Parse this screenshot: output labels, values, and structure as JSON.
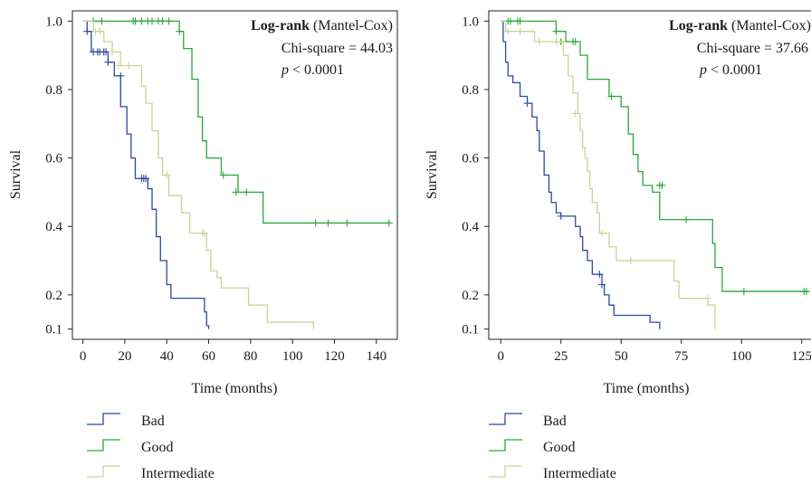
{
  "colors": {
    "bad": "#2b4aa0",
    "good": "#27a83c",
    "intermediate": "#cdd296",
    "axis": "#222222"
  },
  "chart_data": [
    {
      "type": "line",
      "step": true,
      "xlabel": "Time (months)",
      "ylabel": "Survival",
      "xlim": [
        -5,
        150
      ],
      "ylim": [
        0.07,
        1.03
      ],
      "xticks": [
        0,
        20,
        40,
        60,
        80,
        100,
        120,
        140
      ],
      "xtick_labels": [
        "0",
        "20",
        "40",
        "60",
        "80",
        "100",
        "120",
        "140"
      ],
      "yticks": [
        1.0,
        0.8,
        0.6,
        0.4,
        0.2,
        0.1
      ],
      "ytick_labels": [
        "1.0",
        "0.8",
        "0.6",
        "0.4",
        "0.2",
        "0.1"
      ],
      "annotation": {
        "line1_bold": "Log-rank",
        "line1_rest": " (Mantel-Cox)",
        "line2": "Chi-square = 44.03",
        "line3_italic": "p",
        "line3_rest": " < 0.0001"
      },
      "series": [
        {
          "name": "Bad",
          "color": "#2b4aa0",
          "points": [
            [
              0,
              1.0
            ],
            [
              2,
              0.97
            ],
            [
              4,
              0.91
            ],
            [
              12,
              0.88
            ],
            [
              15,
              0.84
            ],
            [
              18,
              0.75
            ],
            [
              21,
              0.67
            ],
            [
              23,
              0.6
            ],
            [
              25,
              0.54
            ],
            [
              31,
              0.51
            ],
            [
              33,
              0.45
            ],
            [
              35,
              0.37
            ],
            [
              37,
              0.3
            ],
            [
              40,
              0.23
            ],
            [
              42,
              0.19
            ],
            [
              58,
              0.15
            ],
            [
              59,
              0.11
            ],
            [
              60,
              0.1
            ]
          ],
          "censored": [
            [
              2,
              0.97
            ],
            [
              5,
              0.91
            ],
            [
              7,
              0.91
            ],
            [
              8,
              0.91
            ],
            [
              10,
              0.91
            ],
            [
              11,
              0.91
            ],
            [
              12,
              0.88
            ],
            [
              18,
              0.84
            ],
            [
              28,
              0.54
            ],
            [
              29,
              0.54
            ],
            [
              30,
              0.54
            ]
          ]
        },
        {
          "name": "Good",
          "color": "#27a83c",
          "points": [
            [
              0,
              1.0
            ],
            [
              46,
              0.97
            ],
            [
              48,
              0.92
            ],
            [
              52,
              0.83
            ],
            [
              55,
              0.72
            ],
            [
              57,
              0.65
            ],
            [
              59,
              0.6
            ],
            [
              66,
              0.55
            ],
            [
              74,
              0.5
            ],
            [
              86,
              0.41
            ],
            [
              146,
              0.41
            ]
          ],
          "censored": [
            [
              5,
              1.0
            ],
            [
              9,
              1.0
            ],
            [
              24,
              1.0
            ],
            [
              25,
              1.0
            ],
            [
              28,
              1.0
            ],
            [
              31,
              1.0
            ],
            [
              33,
              1.0
            ],
            [
              36,
              1.0
            ],
            [
              38,
              1.0
            ],
            [
              41,
              1.0
            ],
            [
              46,
              0.97
            ],
            [
              67,
              0.55
            ],
            [
              73,
              0.5
            ],
            [
              78,
              0.5
            ],
            [
              111,
              0.41
            ],
            [
              117,
              0.41
            ],
            [
              126,
              0.41
            ],
            [
              146,
              0.41
            ]
          ]
        },
        {
          "name": "Intermediate",
          "color": "#cdd296",
          "points": [
            [
              0,
              1.0
            ],
            [
              5,
              0.97
            ],
            [
              10,
              0.94
            ],
            [
              14,
              0.91
            ],
            [
              18,
              0.87
            ],
            [
              28,
              0.81
            ],
            [
              30,
              0.76
            ],
            [
              33,
              0.68
            ],
            [
              36,
              0.6
            ],
            [
              38,
              0.55
            ],
            [
              41,
              0.49
            ],
            [
              47,
              0.44
            ],
            [
              51,
              0.38
            ],
            [
              59,
              0.33
            ],
            [
              61,
              0.27
            ],
            [
              64,
              0.25
            ],
            [
              66,
              0.22
            ],
            [
              79,
              0.17
            ],
            [
              88,
              0.12
            ],
            [
              110,
              0.1
            ]
          ],
          "censored": [
            [
              6,
              0.97
            ],
            [
              8,
              0.97
            ],
            [
              14,
              0.91
            ],
            [
              17,
              0.87
            ],
            [
              22,
              0.87
            ],
            [
              40,
              0.55
            ],
            [
              57,
              0.38
            ],
            [
              58,
              0.38
            ]
          ]
        }
      ],
      "legend": {
        "position": "bottom",
        "entries": [
          "Bad",
          "Good",
          "Intermediate"
        ]
      }
    },
    {
      "type": "line",
      "step": true,
      "xlabel": "Time (months)",
      "ylabel": "Survival",
      "xlim": [
        -5,
        130
      ],
      "ylim": [
        0.07,
        1.03
      ],
      "xticks": [
        0,
        25,
        50,
        75,
        100,
        125
      ],
      "xtick_labels": [
        "0",
        "25",
        "50",
        "75",
        "100",
        "125"
      ],
      "yticks": [
        1.0,
        0.8,
        0.6,
        0.4,
        0.2,
        0.1
      ],
      "ytick_labels": [
        "1.0",
        "0.8",
        "0.6",
        "0.4",
        "0.2",
        "0.1"
      ],
      "annotation": {
        "line1_bold": "Log-rank",
        "line1_rest": " (Mantel-Cox)",
        "line2": "Chi-square = 37.66",
        "line3_italic": "p",
        "line3_rest": " < 0.0001"
      },
      "series": [
        {
          "name": "Bad",
          "color": "#2b4aa0",
          "points": [
            [
              0,
              1.0
            ],
            [
              1,
              0.94
            ],
            [
              2,
              0.88
            ],
            [
              3,
              0.84
            ],
            [
              5,
              0.82
            ],
            [
              8,
              0.78
            ],
            [
              11,
              0.76
            ],
            [
              13,
              0.72
            ],
            [
              15,
              0.68
            ],
            [
              16,
              0.62
            ],
            [
              18,
              0.55
            ],
            [
              20,
              0.5
            ],
            [
              21,
              0.47
            ],
            [
              23,
              0.44
            ],
            [
              25,
              0.43
            ],
            [
              31,
              0.4
            ],
            [
              33,
              0.37
            ],
            [
              34,
              0.33
            ],
            [
              36,
              0.3
            ],
            [
              38,
              0.26
            ],
            [
              42,
              0.23
            ],
            [
              43,
              0.2
            ],
            [
              45,
              0.17
            ],
            [
              47,
              0.14
            ],
            [
              62,
              0.12
            ],
            [
              66,
              0.1
            ]
          ],
          "censored": [
            [
              11,
              0.76
            ],
            [
              25,
              0.43
            ],
            [
              41,
              0.26
            ],
            [
              42,
              0.23
            ]
          ]
        },
        {
          "name": "Good",
          "color": "#27a83c",
          "points": [
            [
              0,
              1.0
            ],
            [
              23,
              0.97
            ],
            [
              27,
              0.94
            ],
            [
              33,
              0.9
            ],
            [
              36,
              0.83
            ],
            [
              45,
              0.78
            ],
            [
              50,
              0.75
            ],
            [
              53,
              0.67
            ],
            [
              55,
              0.61
            ],
            [
              57,
              0.56
            ],
            [
              59,
              0.52
            ],
            [
              63,
              0.5
            ],
            [
              66,
              0.42
            ],
            [
              88,
              0.35
            ],
            [
              89,
              0.28
            ],
            [
              92,
              0.21
            ],
            [
              128,
              0.21
            ]
          ],
          "censored": [
            [
              3,
              1.0
            ],
            [
              4,
              1.0
            ],
            [
              7,
              1.0
            ],
            [
              8,
              1.0
            ],
            [
              23,
              0.97
            ],
            [
              25,
              0.94
            ],
            [
              30,
              0.94
            ],
            [
              31,
              0.94
            ],
            [
              46,
              0.78
            ],
            [
              66,
              0.52
            ],
            [
              67,
              0.52
            ],
            [
              77,
              0.42
            ],
            [
              101,
              0.21
            ],
            [
              126,
              0.21
            ],
            [
              127,
              0.21
            ]
          ]
        },
        {
          "name": "Intermediate",
          "color": "#cdd296",
          "points": [
            [
              0,
              1.0
            ],
            [
              2,
              0.97
            ],
            [
              14,
              0.94
            ],
            [
              26,
              0.9
            ],
            [
              28,
              0.84
            ],
            [
              30,
              0.79
            ],
            [
              32,
              0.73
            ],
            [
              33,
              0.68
            ],
            [
              34,
              0.63
            ],
            [
              35,
              0.6
            ],
            [
              36,
              0.56
            ],
            [
              37,
              0.51
            ],
            [
              38,
              0.47
            ],
            [
              40,
              0.44
            ],
            [
              41,
              0.38
            ],
            [
              45,
              0.34
            ],
            [
              48,
              0.3
            ],
            [
              72,
              0.24
            ],
            [
              74,
              0.19
            ],
            [
              86,
              0.17
            ],
            [
              89,
              0.1
            ]
          ],
          "censored": [
            [
              3,
              0.97
            ],
            [
              8,
              0.97
            ],
            [
              16,
              0.94
            ],
            [
              23,
              0.94
            ],
            [
              31,
              0.73
            ],
            [
              42,
              0.38
            ],
            [
              54,
              0.3
            ],
            [
              86,
              0.19
            ]
          ]
        }
      ],
      "legend": {
        "position": "bottom",
        "entries": [
          "Bad",
          "Good",
          "Intermediate"
        ]
      }
    }
  ]
}
